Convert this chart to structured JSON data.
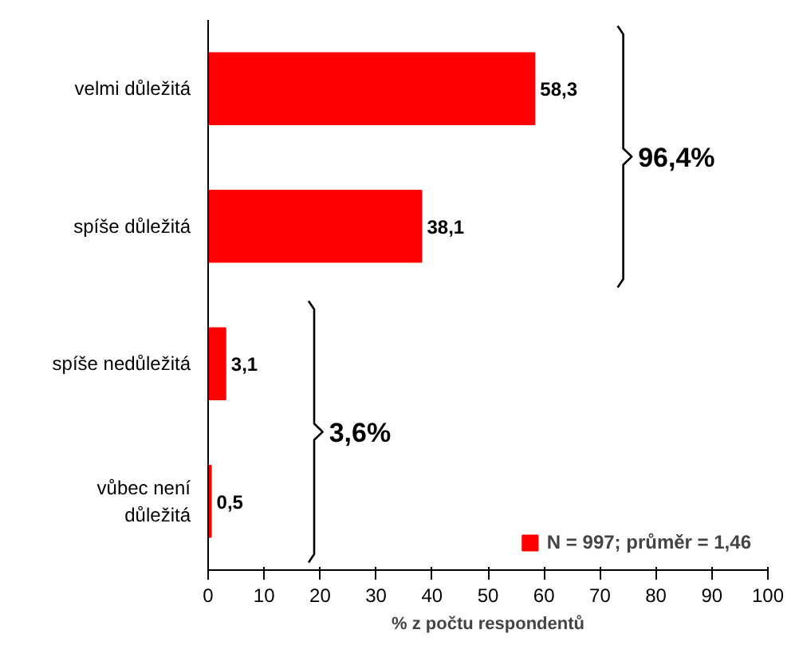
{
  "chart_data": {
    "type": "bar",
    "orientation": "horizontal",
    "xlabel": "% z počtu respondentů",
    "categories": [
      "velmi důležitá",
      "spíše důležitá",
      "spíše nedůležitá",
      "vůbec není\ndůležitá"
    ],
    "series": [
      {
        "name": "N = 997; průměr = 1,46",
        "color": "#ff0000",
        "values": [
          58.3,
          38.1,
          3.1,
          0.5
        ]
      }
    ],
    "value_labels": [
      "58,3",
      "38,1",
      "3,1",
      "0,5"
    ],
    "xlim": [
      0,
      100
    ],
    "xticks": [
      0,
      10,
      20,
      30,
      40,
      50,
      60,
      70,
      80,
      90,
      100
    ],
    "annotations": [
      "96,4%",
      "3,6%"
    ],
    "grid": false,
    "legend": "bottom right"
  }
}
